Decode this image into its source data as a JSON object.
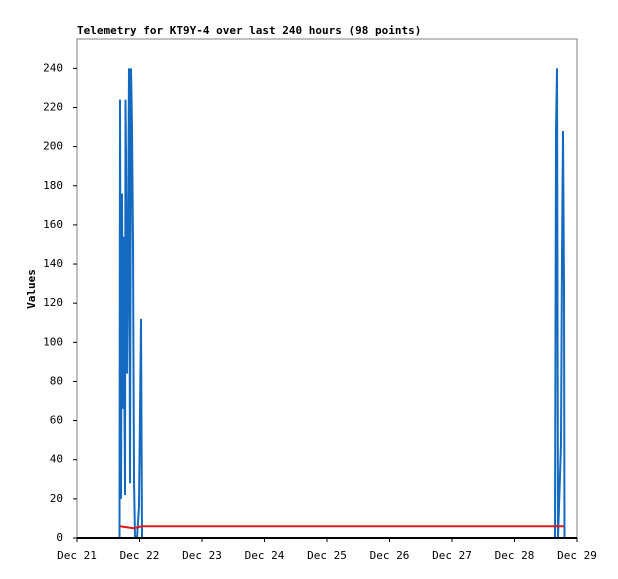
{
  "chart_data": {
    "type": "line",
    "title": "Telemetry for KT9Y-4 over last 240 hours (98 points)",
    "y_label": "Values",
    "xlim": [
      21,
      29
    ],
    "xticks": [
      {
        "value": 21,
        "label": "Dec 21"
      },
      {
        "value": 22,
        "label": "Dec 22"
      },
      {
        "value": 23,
        "label": "Dec 23"
      },
      {
        "value": 24,
        "label": "Dec 24"
      },
      {
        "value": 25,
        "label": "Dec 25"
      },
      {
        "value": 26,
        "label": "Dec 26"
      },
      {
        "value": 27,
        "label": "Dec 27"
      },
      {
        "value": 28,
        "label": "Dec 28"
      },
      {
        "value": 29,
        "label": "Dec 29"
      }
    ],
    "ylim": [
      0,
      255
    ],
    "yticks": [
      0,
      20,
      40,
      60,
      80,
      100,
      120,
      140,
      160,
      180,
      200,
      220,
      240
    ],
    "grid": false,
    "series": [
      {
        "color": "#1469c0",
        "x": [
          21.68,
          21.688,
          21.704,
          21.72,
          21.736,
          21.744,
          21.752,
          21.768,
          21.776,
          21.784,
          21.8,
          21.816,
          21.832,
          21.848,
          21.864,
          21.88,
          21.896,
          21.904,
          21.912,
          21.928,
          21.96,
          21.992,
          22.024,
          22.04,
          28.648,
          28.664,
          28.68,
          28.696,
          28.744,
          28.76,
          28.776,
          28.792,
          28.8
        ],
        "values": [
          0,
          224,
          20,
          176,
          66,
          154,
          110,
          22,
          224,
          196,
          84,
          140,
          240,
          28,
          240,
          210,
          150,
          90,
          30,
          0,
          0,
          16,
          112,
          0,
          0,
          208,
          240,
          0,
          48,
          144,
          208,
          128,
          0
        ]
      },
      {
        "color": "#e01818",
        "x": [
          21.688,
          21.9,
          22.04,
          28.792
        ],
        "values": [
          6,
          5,
          6,
          6
        ]
      }
    ]
  }
}
